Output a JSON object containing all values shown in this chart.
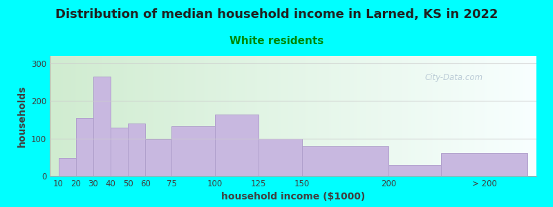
{
  "title": "Distribution of median household income in Larned, KS in 2022",
  "subtitle": "White residents",
  "xlabel": "household income ($1000)",
  "ylabel": "households",
  "background_outer": "#00FFFF",
  "background_inner_left": "#d0ecd0",
  "background_inner_right": "#f8ffff",
  "bar_color": "#c8b8e0",
  "bar_edge_color": "#b0a0cc",
  "title_fontsize": 13,
  "subtitle_fontsize": 11,
  "subtitle_color": "#008800",
  "xlabel_fontsize": 10,
  "ylabel_fontsize": 10,
  "values": [
    47,
    155,
    265,
    128,
    140,
    98,
    133,
    163,
    100,
    80,
    30,
    60
  ],
  "bar_lefts": [
    10,
    20,
    30,
    40,
    50,
    60,
    75,
    100,
    125,
    150,
    200,
    230
  ],
  "bar_widths": [
    10,
    10,
    10,
    10,
    10,
    15,
    25,
    25,
    25,
    50,
    30,
    50
  ],
  "ylim": [
    0,
    320
  ],
  "yticks": [
    0,
    100,
    200,
    300
  ],
  "xtick_labels": [
    "10",
    "20",
    "30",
    "40",
    "50",
    "60",
    "75",
    "100",
    "125",
    "150",
    "200",
    "> 200"
  ],
  "xtick_positions": [
    10,
    20,
    30,
    40,
    50,
    60,
    75,
    100,
    125,
    150,
    200,
    255
  ],
  "xlim": [
    5,
    285
  ],
  "watermark": "City-Data.com"
}
